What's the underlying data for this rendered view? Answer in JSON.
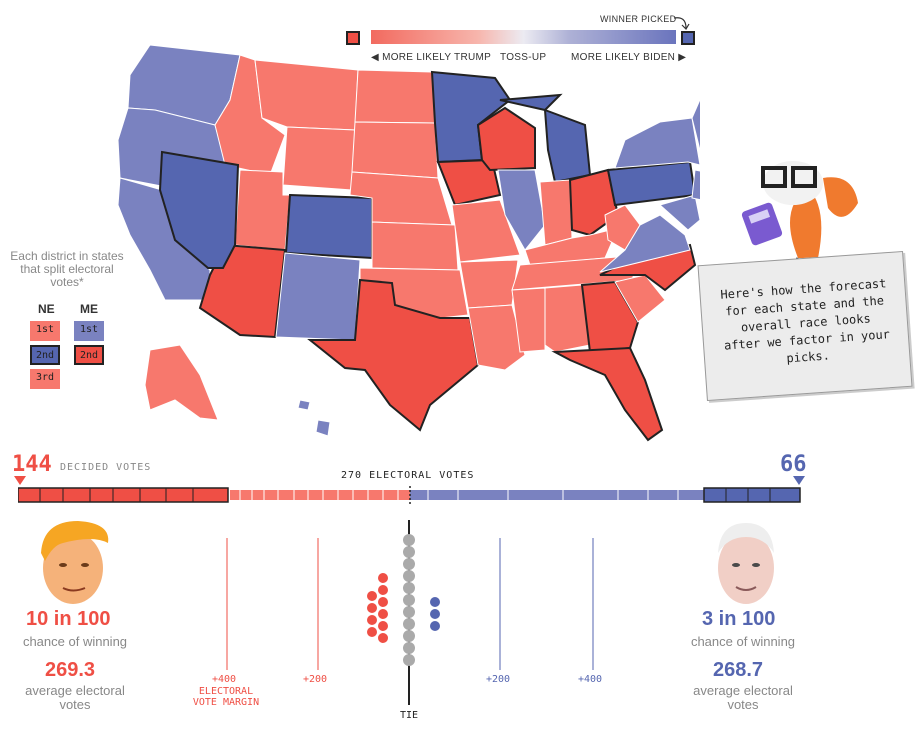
{
  "legend": {
    "winner_picked": "WINNER PICKED",
    "more_likely_trump": "◀ MORE LIKELY TRUMP",
    "toss_up": "TOSS-UP",
    "more_likely_biden": "MORE LIKELY BIDEN ▶",
    "colors": {
      "trump_strong": "#ef4f45",
      "trump_lean": "#f7786d",
      "biden_strong": "#5566b0",
      "biden_lean": "#7a82c0",
      "tossup": "#ecebf2"
    }
  },
  "district_panel": {
    "note": "Each district in states that split electoral votes*",
    "ne": {
      "code": "NE",
      "districts": [
        "1st",
        "2nd",
        "3rd"
      ]
    },
    "me": {
      "code": "ME",
      "districts": [
        "1st",
        "2nd"
      ]
    }
  },
  "speech_bubble": {
    "text": "Here's how the forecast for each state and the overall race looks after we factor in your picks."
  },
  "electoral_bar": {
    "trump_decided": "144",
    "biden_decided": "66",
    "decided_label": "DECIDED VOTES",
    "center_label": "270 ELECTORAL VOTES"
  },
  "trump": {
    "chance": "10 in 100",
    "chance_label": "chance of winning",
    "average": "269.3",
    "average_label": "average electoral votes"
  },
  "biden": {
    "chance": "3 in 100",
    "chance_label": "chance of winning",
    "average": "268.7",
    "average_label": "average electoral votes"
  },
  "margin_chart": {
    "trump_ticks": [
      "+400",
      "+200"
    ],
    "biden_ticks": [
      "+200",
      "+400"
    ],
    "axis_label": "ELECTORAL VOTE MARGIN",
    "tie_label": "TIE"
  }
}
